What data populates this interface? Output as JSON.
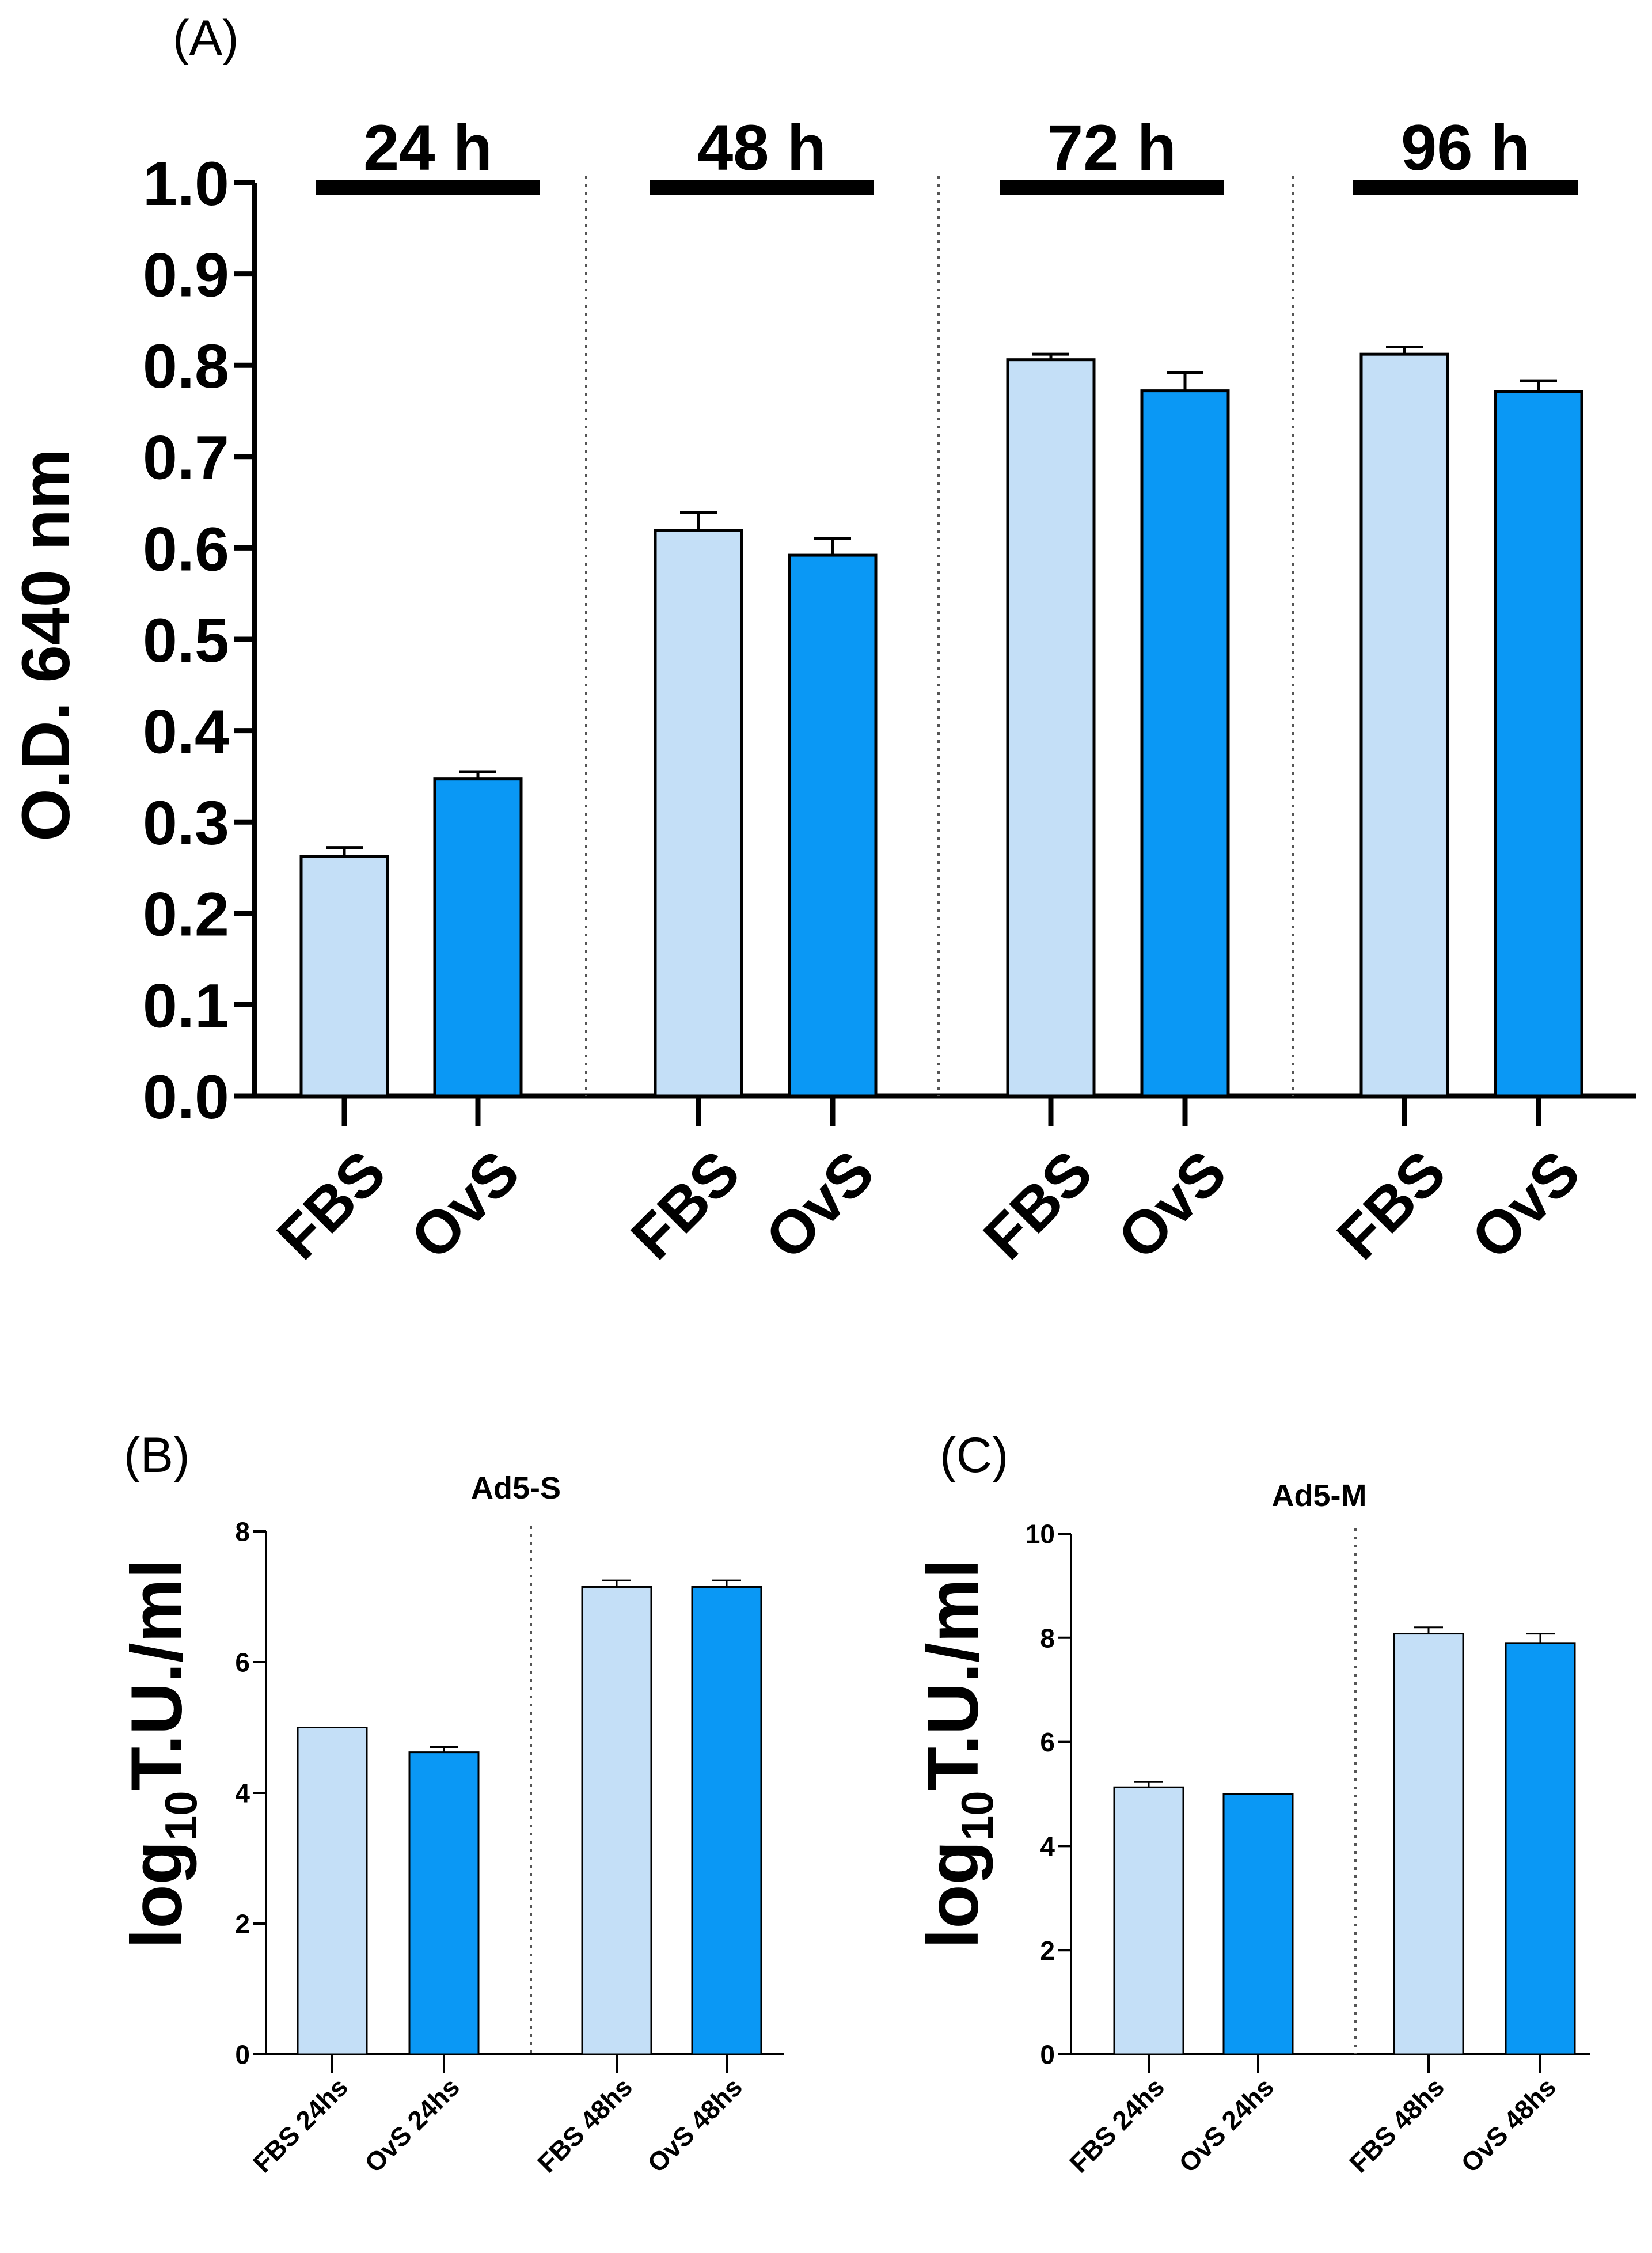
{
  "colors": {
    "fbs": "#C4DFF7",
    "ovs": "#0A98F5",
    "outline": "#000000"
  },
  "chart_data": [
    {
      "panel": "(A)",
      "type": "bar",
      "ylabel": "O.D. 640 nm",
      "ylim": [
        0,
        1.0
      ],
      "yticks": [
        "0.0",
        "0.1",
        "0.2",
        "0.3",
        "0.4",
        "0.5",
        "0.6",
        "0.7",
        "0.8",
        "0.9",
        "1.0"
      ],
      "groups": [
        {
          "label": "24 h",
          "bars": [
            {
              "label": "FBS",
              "value": 0.262,
              "err": 0.01
            },
            {
              "label": "OvS",
              "value": 0.347,
              "err": 0.008
            }
          ]
        },
        {
          "label": "48 h",
          "bars": [
            {
              "label": "FBS",
              "value": 0.619,
              "err": 0.02
            },
            {
              "label": "OvS",
              "value": 0.592,
              "err": 0.018
            }
          ]
        },
        {
          "label": "72 h",
          "bars": [
            {
              "label": "FBS",
              "value": 0.806,
              "err": 0.006
            },
            {
              "label": "OvS",
              "value": 0.772,
              "err": 0.02
            }
          ]
        },
        {
          "label": "96 h",
          "bars": [
            {
              "label": "FBS",
              "value": 0.812,
              "err": 0.008
            },
            {
              "label": "OvS",
              "value": 0.771,
              "err": 0.012
            }
          ]
        }
      ]
    },
    {
      "panel": "(B)",
      "type": "bar",
      "title": "Ad5-S",
      "ylabel_main": "log",
      "ylabel_sub": "10",
      "ylabel_rest": "T.U./ml",
      "ylim": [
        0,
        8
      ],
      "yticks": [
        "0",
        "2",
        "4",
        "6",
        "8"
      ],
      "groups": [
        {
          "bars": [
            {
              "label": "FBS 24hs",
              "value": 5.0,
              "err": 0
            },
            {
              "label": "OvS 24hs",
              "value": 4.62,
              "err": 0.08
            }
          ]
        },
        {
          "bars": [
            {
              "label": "FBS 48hs",
              "value": 7.15,
              "err": 0.1
            },
            {
              "label": "OvS 48hs",
              "value": 7.15,
              "err": 0.1
            }
          ]
        }
      ]
    },
    {
      "panel": "(C)",
      "type": "bar",
      "title": "Ad5-M",
      "ylabel_main": "log",
      "ylabel_sub": "10",
      "ylabel_rest": "T.U./ml",
      "ylim": [
        0,
        10
      ],
      "yticks": [
        "0",
        "2",
        "4",
        "6",
        "8",
        "10"
      ],
      "groups": [
        {
          "bars": [
            {
              "label": "FBS 24hs",
              "value": 5.13,
              "err": 0.1
            },
            {
              "label": "OvS 24hs",
              "value": 5.0,
              "err": 0
            }
          ]
        },
        {
          "bars": [
            {
              "label": "FBS 48hs",
              "value": 8.08,
              "err": 0.12
            },
            {
              "label": "OvS 48hs",
              "value": 7.9,
              "err": 0.18
            }
          ]
        }
      ]
    }
  ]
}
